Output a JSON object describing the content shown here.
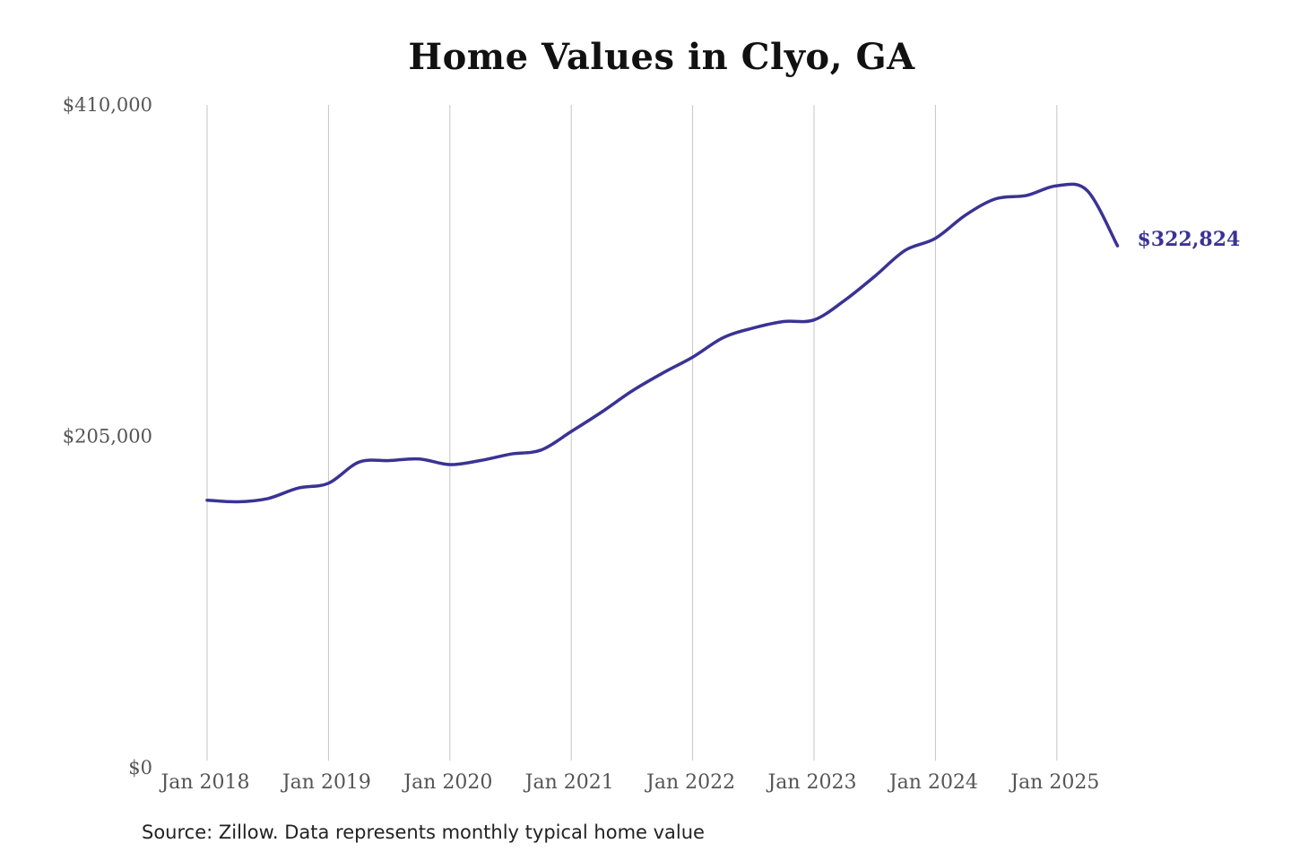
{
  "chart_data": {
    "type": "line",
    "title": "Home Values in Clyo, GA",
    "xlabel": "",
    "ylabel": "",
    "ylim": [
      0,
      410000
    ],
    "y_ticks": [
      "$410,000",
      "$205,000",
      "$0"
    ],
    "y_tick_values": [
      410000,
      205000,
      0
    ],
    "x_ticks": [
      "Jan 2018",
      "Jan 2019",
      "Jan 2020",
      "Jan 2021",
      "Jan 2022",
      "Jan 2023",
      "Jan 2024",
      "Jan 2025"
    ],
    "x_tick_values": [
      "2018-01",
      "2019-01",
      "2020-01",
      "2021-01",
      "2022-01",
      "2023-01",
      "2024-01",
      "2025-01"
    ],
    "xlim": [
      "2018-01",
      "2025-07"
    ],
    "grid": {
      "vertical": true,
      "horizontal": false
    },
    "line_color": "#3a3394",
    "end_label": "$322,824",
    "series": [
      {
        "x": [
          "2018-01",
          "2018-04",
          "2018-07",
          "2018-10",
          "2019-01",
          "2019-04",
          "2019-07",
          "2019-10",
          "2020-01",
          "2020-04",
          "2020-07",
          "2020-10",
          "2021-01",
          "2021-04",
          "2021-07",
          "2021-10",
          "2022-01",
          "2022-04",
          "2022-07",
          "2022-10",
          "2023-01",
          "2023-04",
          "2023-07",
          "2023-10",
          "2024-01",
          "2024-04",
          "2024-07",
          "2024-10",
          "2025-01",
          "2025-04",
          "2025-07"
        ],
        "values": [
          165500,
          164500,
          166500,
          173000,
          176000,
          189000,
          190000,
          191000,
          187500,
          190000,
          194000,
          196500,
          208000,
          220000,
          233000,
          244000,
          254000,
          266000,
          272000,
          276000,
          277000,
          289000,
          304000,
          320000,
          327500,
          342000,
          352000,
          354000,
          360000,
          357000,
          322824
        ]
      }
    ]
  },
  "source": "Source: Zillow. Data represents monthly typical home value"
}
